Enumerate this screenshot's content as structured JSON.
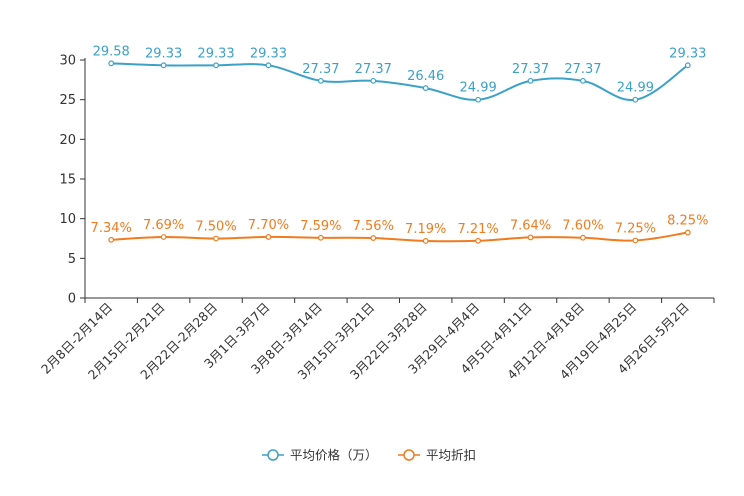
{
  "chart_data": {
    "type": "line",
    "title": "",
    "xlabel": "",
    "ylabel": "",
    "ylim": [
      0,
      30
    ],
    "yticks": [
      0,
      5,
      10,
      15,
      20,
      25,
      30
    ],
    "grid": false,
    "legend_position": "bottom-center",
    "categories": [
      "2月8日-2月14日",
      "2月15日-2月21日",
      "2月22日-2月28日",
      "3月1日-3月7日",
      "3月8日-3月14日",
      "3月15日-3月21日",
      "3月22日-3月28日",
      "3月29日-4月4日",
      "4月5日-4月11日",
      "4月12日-4月18日",
      "4月19日-4月25日",
      "4月26日-5月2日"
    ],
    "series": [
      {
        "name": "平均价格（万）",
        "color": "#3ba1c9",
        "values": [
          29.58,
          29.33,
          29.33,
          29.33,
          27.37,
          27.37,
          26.46,
          24.99,
          27.37,
          27.37,
          24.99,
          29.33
        ],
        "labels": [
          "29.58",
          "29.33",
          "29.33",
          "29.33",
          "27.37",
          "27.37",
          "26.46",
          "24.99",
          "27.37",
          "27.37",
          "24.99",
          "29.33"
        ]
      },
      {
        "name": "平均折扣",
        "color": "#f07c1f",
        "values": [
          7.34,
          7.69,
          7.5,
          7.7,
          7.59,
          7.56,
          7.19,
          7.21,
          7.64,
          7.6,
          7.25,
          8.25
        ],
        "labels": [
          "7.34%",
          "7.69%",
          "7.50%",
          "7.70%",
          "7.59%",
          "7.56%",
          "7.19%",
          "7.21%",
          "7.64%",
          "7.60%",
          "7.25%",
          "8.25%"
        ]
      }
    ]
  }
}
